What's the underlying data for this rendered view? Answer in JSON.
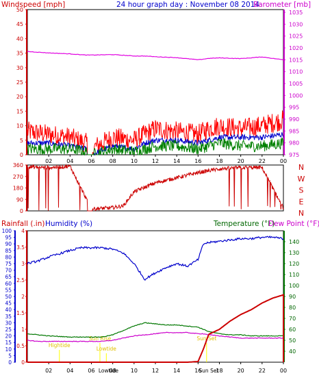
{
  "charts": {
    "wind": {
      "title": "24 hour graph day : November 08 2014",
      "left_label": "Windspeed [mph]",
      "right_label": "Barometer [mb]",
      "left_axis": {
        "min": 0,
        "max": 50,
        "ticks": [
          "0",
          "5",
          "10",
          "15",
          "20",
          "25",
          "30",
          "35",
          "40",
          "45",
          "50"
        ]
      },
      "right_axis": {
        "min": 975,
        "max": 1035,
        "ticks": [
          "975",
          "980",
          "985",
          "990",
          "995",
          "1000",
          "1005",
          "1010",
          "1015",
          "1020",
          "1025",
          "1030",
          "1035"
        ]
      },
      "x_ticks": [
        "02",
        "04",
        "06",
        "08",
        "10",
        "12",
        "14",
        "16",
        "18",
        "20",
        "22",
        "00"
      ],
      "colors": {
        "gust": "#ff0000",
        "avg": "#0000cc",
        "speed": "#008000",
        "barometer": "#e000e0",
        "left_axis": "#cc0000",
        "right_axis": "#cc00cc"
      }
    },
    "direction": {
      "left_axis": {
        "min": 0,
        "max": 360,
        "ticks": [
          "0",
          "90",
          "180",
          "270",
          "360"
        ]
      },
      "right_labels": [
        "N",
        "W",
        "S",
        "E",
        "N"
      ],
      "color": "#cc0000"
    },
    "bottom": {
      "rain_label": "Rainfall (.in)",
      "humidity_label": "Humidity (%)",
      "temp_label": "Temperature (°F)",
      "dew_label": "Dew Point (°F)",
      "rain_axis": {
        "min": 0,
        "max": 4,
        "ticks": [
          "0",
          "0.5",
          "1",
          "1.5",
          "2",
          "2.5",
          "3",
          "3.5",
          "4"
        ]
      },
      "humidity_axis": {
        "min": 0,
        "max": 100,
        "ticks": [
          "0",
          "5",
          "10",
          "15",
          "20",
          "25",
          "30",
          "35",
          "40",
          "45",
          "50",
          "55",
          "60",
          "65",
          "70",
          "75",
          "80",
          "85",
          "90",
          "95",
          "100"
        ]
      },
      "temp_axis": {
        "min": 30,
        "max": 150,
        "ticks": [
          "40",
          "50",
          "60",
          "70",
          "80",
          "90",
          "100",
          "110",
          "120",
          "130",
          "140"
        ]
      },
      "x_ticks": [
        "02",
        "04",
        "06",
        "08",
        "10",
        "12",
        "14",
        "16",
        "18",
        "20",
        "22",
        "00"
      ],
      "events": [
        {
          "label": "Hightide",
          "x": 3.0
        },
        {
          "label": "Sun Rise",
          "x": 6.8
        },
        {
          "label": "Lowtide",
          "x": 7.4
        },
        {
          "label": "Sun Set",
          "x": 16.8
        }
      ],
      "bottom_extra_labels": [
        "Lowtide",
        "Sun Set"
      ],
      "colors": {
        "rain": "#cc0000",
        "humidity": "#0000cc",
        "temp": "#007700",
        "dew": "#cc00cc",
        "event": "#ffff00"
      }
    }
  },
  "chart_data": [
    {
      "type": "line",
      "title": "24 hour graph day : November 08 2014",
      "xlabel": "",
      "ylabel": "Windspeed [mph]",
      "y2label": "Barometer [mb]",
      "ylim": [
        0,
        50
      ],
      "y2lim": [
        975,
        1035
      ],
      "xlim": [
        0,
        24
      ],
      "x": [
        0,
        2,
        4,
        5.5,
        6,
        8,
        10,
        11,
        12,
        14,
        16,
        17,
        18,
        20,
        22,
        24
      ],
      "series": [
        {
          "name": "",
          "axis": "left",
          "values": [
            8,
            7,
            6,
            4,
            2,
            6,
            5,
            7,
            9,
            8,
            7,
            9,
            10,
            9,
            10,
            12
          ]
        },
        {
          "name": "",
          "axis": "left",
          "values": [
            4,
            4,
            3,
            2,
            0,
            3,
            2,
            4,
            5,
            5,
            4,
            5,
            6,
            6,
            6,
            7
          ]
        },
        {
          "name": "",
          "axis": "left",
          "values": [
            2,
            2,
            2,
            1,
            0,
            2,
            1,
            2,
            3,
            3,
            2,
            3,
            4,
            3,
            3,
            4
          ]
        },
        {
          "name": "",
          "axis": "right",
          "values": [
            1018.5,
            1017.9,
            1017.5,
            1017.0,
            1017.0,
            1017.2,
            1016.6,
            1016.6,
            1016.3,
            1015.9,
            1015.0,
            1015.6,
            1015.8,
            1015.5,
            1016.2,
            1015.0
          ]
        }
      ]
    },
    {
      "type": "scatter",
      "ylabel": "",
      "ylim": [
        0,
        360
      ],
      "xlim": [
        0,
        24
      ],
      "x": [
        0,
        2,
        4,
        6,
        8,
        9,
        10,
        12,
        14,
        16,
        18,
        20,
        22,
        24
      ],
      "series": [
        {
          "name": "",
          "values": [
            345,
            340,
            350,
            15,
            25,
            40,
            150,
            220,
            260,
            300,
            330,
            340,
            340,
            20
          ]
        }
      ]
    },
    {
      "type": "line",
      "xlim": [
        0,
        24
      ],
      "x": [
        0,
        1,
        2,
        4,
        5,
        6,
        7,
        8,
        9,
        10,
        11,
        12,
        13,
        14,
        15,
        16,
        16.5,
        17,
        18,
        19,
        20,
        21,
        22,
        23,
        24
      ],
      "series": [
        {
          "name": "Humidity (%)",
          "axis": "humidity",
          "values": [
            75,
            77,
            80,
            85,
            87,
            87,
            87,
            86,
            83,
            75,
            63,
            68,
            72,
            75,
            73,
            78,
            90,
            91,
            92,
            93,
            94,
            94,
            95,
            95,
            94
          ]
        },
        {
          "name": "Temperature (°F)",
          "axis": "temp",
          "values": [
            56,
            55,
            54,
            53,
            53,
            53,
            53,
            55,
            59,
            63,
            66,
            65,
            64,
            64,
            63,
            62,
            60,
            58,
            56,
            55,
            55,
            54,
            54,
            54,
            54
          ]
        },
        {
          "name": "Dew Point (°F)",
          "axis": "temp",
          "values": [
            50,
            49,
            49,
            49,
            49,
            49,
            49,
            50,
            52,
            54,
            55,
            56,
            57,
            57,
            57,
            56,
            56,
            55,
            54,
            53,
            52,
            52,
            52,
            52,
            52
          ]
        },
        {
          "name": "Rainfall (.in)",
          "axis": "rain",
          "values": [
            0,
            0,
            0,
            0,
            0,
            0,
            0,
            0,
            0,
            0,
            0,
            0,
            0,
            0,
            0,
            0.02,
            0.4,
            0.85,
            1.0,
            1.25,
            1.45,
            1.6,
            1.8,
            1.95,
            2.05
          ]
        }
      ],
      "y_rain_lim": [
        0,
        4
      ],
      "y_humidity_lim": [
        0,
        100
      ],
      "y_temp_lim": [
        30,
        150
      ]
    }
  ]
}
